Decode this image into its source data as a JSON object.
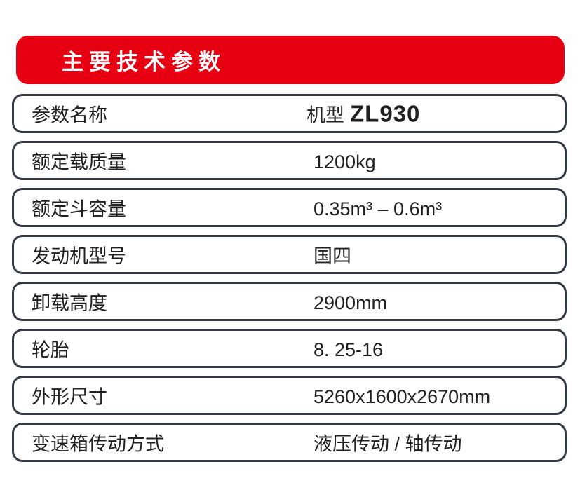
{
  "header": {
    "title": "主要技术参数"
  },
  "table": {
    "rows": [
      {
        "label": "参数名称",
        "value": "机型",
        "model": "ZL930"
      },
      {
        "label": "额定载质量",
        "value": "1200kg"
      },
      {
        "label": "额定斗容量",
        "value": "0.35m³ – 0.6m³"
      },
      {
        "label": "发动机型号",
        "value": "国四"
      },
      {
        "label": "卸载高度",
        "value": "2900mm"
      },
      {
        "label": "轮胎",
        "value": "8. 25-16"
      },
      {
        "label": "外形尺寸",
        "value": "5260x1600x2670mm"
      },
      {
        "label": "变速箱传动方式",
        "value": "液压传动 / 轴传动"
      }
    ]
  },
  "colors": {
    "accent_red": "#e60012",
    "row_border": "#333a46",
    "text": "#231f20",
    "title_text": "#ffffff"
  }
}
